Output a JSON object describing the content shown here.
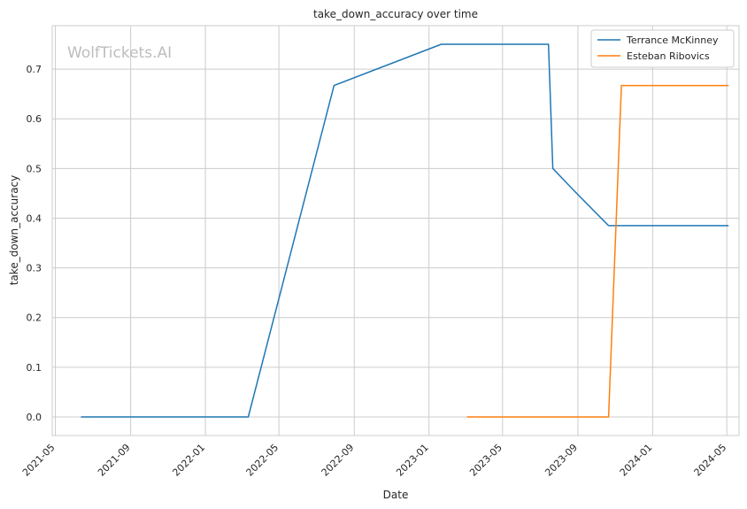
{
  "watermark": "WolfTickets.AI",
  "colors": {
    "series_0": "#1f77b4",
    "series_1": "#ff7f0e",
    "grid": "#cccccc",
    "frame": "#cccccc"
  },
  "chart_data": {
    "type": "line",
    "title": "take_down_accuracy over time",
    "xlabel": "Date",
    "ylabel": "take_down_accuracy",
    "x_type": "date",
    "xlim": [
      "2021-04-26",
      "2024-05-21"
    ],
    "ylim": [
      -0.0375,
      0.7875
    ],
    "x_ticks": [
      "2021-05-01",
      "2021-09-01",
      "2022-01-01",
      "2022-05-01",
      "2022-09-01",
      "2023-01-01",
      "2023-05-01",
      "2023-09-01",
      "2024-01-01",
      "2024-05-01"
    ],
    "x_tick_labels": [
      "2021-05",
      "2021-09",
      "2022-01",
      "2022-05",
      "2022-09",
      "2023-01",
      "2023-05",
      "2023-09",
      "2024-01",
      "2024-05"
    ],
    "y_ticks": [
      0.0,
      0.1,
      0.2,
      0.3,
      0.4,
      0.5,
      0.6,
      0.7
    ],
    "y_tick_labels": [
      "0.0",
      "0.1",
      "0.2",
      "0.3",
      "0.4",
      "0.5",
      "0.6",
      "0.7"
    ],
    "grid": true,
    "legend_position": "top-right",
    "series": [
      {
        "name": "Terrance McKinney",
        "points": [
          {
            "x": "2021-06-12",
            "y": 0.0
          },
          {
            "x": "2022-03-12",
            "y": 0.0
          },
          {
            "x": "2022-07-30",
            "y": 0.667
          },
          {
            "x": "2023-01-21",
            "y": 0.75
          },
          {
            "x": "2023-07-15",
            "y": 0.75
          },
          {
            "x": "2023-07-22",
            "y": 0.5
          },
          {
            "x": "2023-08-26",
            "y": 0.455
          },
          {
            "x": "2023-10-21",
            "y": 0.385
          },
          {
            "x": "2024-05-04",
            "y": 0.385
          }
        ]
      },
      {
        "name": "Esteban Ribovics",
        "points": [
          {
            "x": "2023-03-04",
            "y": 0.0
          },
          {
            "x": "2023-10-21",
            "y": 0.0
          },
          {
            "x": "2023-11-11",
            "y": 0.667
          },
          {
            "x": "2024-05-04",
            "y": 0.667
          }
        ]
      }
    ]
  }
}
